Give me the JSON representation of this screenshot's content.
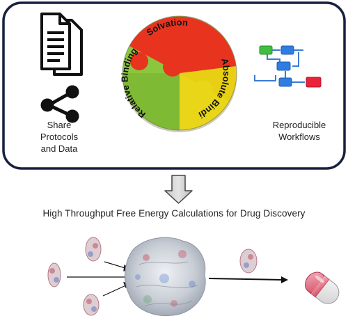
{
  "diagram": {
    "puzzle": {
      "top_label": "Solvation",
      "right_label": "Absolute Binding",
      "left_label": "Relative Binding",
      "colors": {
        "red": "#e8341f",
        "yellow": "#e9d619",
        "green": "#8cc63e"
      }
    },
    "left_caption_lines": [
      "Share",
      "Protocols",
      "and Data"
    ],
    "right_caption_lines": [
      "Reproducible",
      "Workflows"
    ],
    "headline": "High Throughput Free Energy Calculations for Drug Discovery",
    "icons": [
      "document-icon",
      "share-icon",
      "workflow-icon",
      "down-arrow-icon",
      "protein-icon",
      "ligand-icon",
      "pill-icon"
    ],
    "frame_color": "#17213f"
  }
}
